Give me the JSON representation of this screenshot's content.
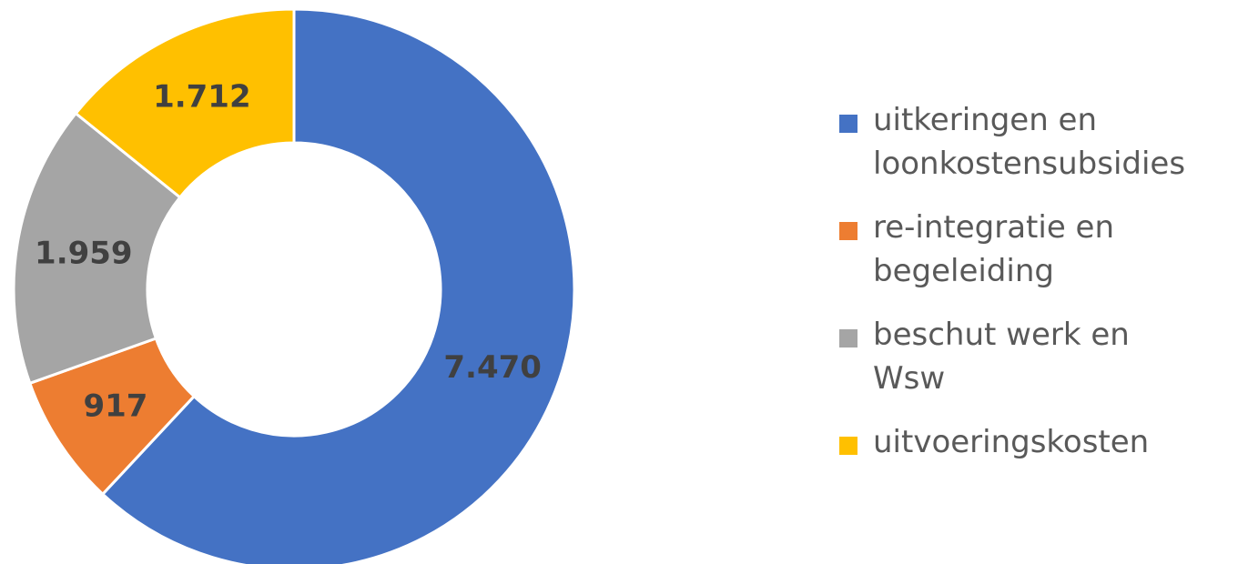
{
  "chart_data": {
    "type": "pie",
    "variant": "donut",
    "title": "",
    "series": [
      {
        "values": [
          7470,
          917,
          1959,
          1712
        ],
        "labels": [
          "7.470",
          "917",
          "1.959",
          "1.712"
        ]
      }
    ],
    "categories": [
      [
        "uitkeringen en",
        "loonkostensubsidies"
      ],
      [
        "re-integratie en",
        "begeleiding"
      ],
      [
        "beschut werk en",
        "Wsw"
      ],
      [
        "uitvoeringskosten"
      ]
    ],
    "colors": [
      "#4472C4",
      "#ED7D31",
      "#A5A5A5",
      "#FFC000"
    ],
    "start_angle": "12 o'clock",
    "direction": "clockwise",
    "legend_position": "right"
  }
}
